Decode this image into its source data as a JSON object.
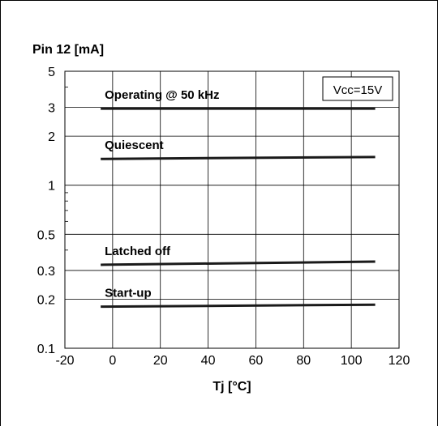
{
  "chart_data": {
    "type": "line",
    "title": "",
    "ylabel": "Pin 12 [mA]",
    "xlabel": "Tj [°C]",
    "xlim": [
      -20,
      120
    ],
    "ylim": [
      0.1,
      5
    ],
    "yscale": "log",
    "grid": true,
    "x_ticks": [
      "-20",
      "0",
      "20",
      "40",
      "60",
      "80",
      "100",
      "120"
    ],
    "x_tick_values": [
      -20,
      0,
      20,
      40,
      60,
      80,
      100,
      120
    ],
    "y_ticks": [
      "0.1",
      "0.2",
      "0.3",
      "0.5",
      "1",
      "2",
      "3",
      "5"
    ],
    "y_tick_values": [
      0.1,
      0.2,
      0.3,
      0.5,
      1,
      2,
      3,
      5
    ],
    "annotation": "Vcc=15V",
    "line_color": "#1a1a1a",
    "series": [
      {
        "name": "Operating @ 50 kHz",
        "x": [
          -5,
          110
        ],
        "y": [
          2.95,
          2.95
        ]
      },
      {
        "name": "Quiescent",
        "x": [
          -5,
          110
        ],
        "y": [
          1.45,
          1.49
        ]
      },
      {
        "name": "Latched off",
        "x": [
          -5,
          110
        ],
        "y": [
          0.325,
          0.34
        ]
      },
      {
        "name": "Start-up",
        "x": [
          -5,
          110
        ],
        "y": [
          0.18,
          0.185
        ]
      }
    ]
  }
}
